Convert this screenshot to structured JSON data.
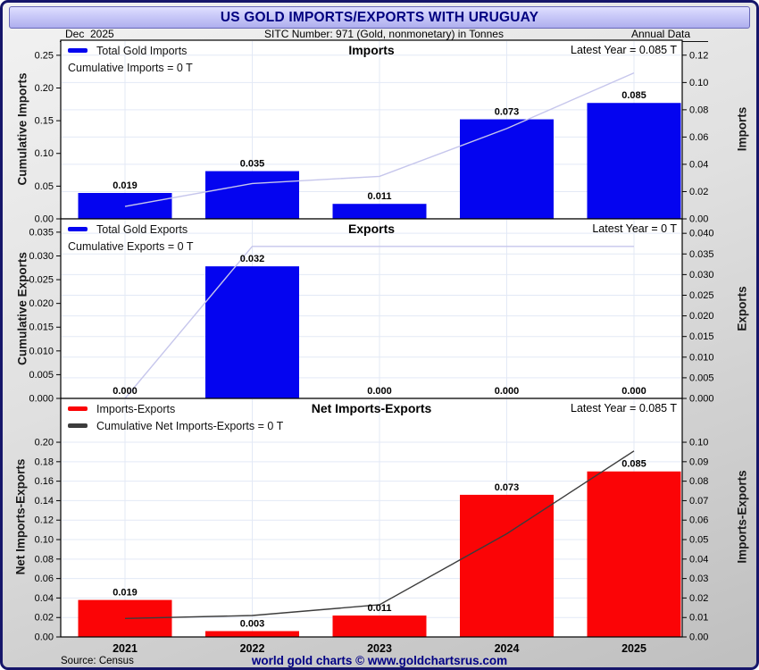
{
  "header": {
    "title": "US GOLD IMPORTS/EXPORTS WITH URUGUAY",
    "date": "Dec  2025",
    "sitc": "SITC Number: 971 (Gold, nonmonetary) in Tonnes",
    "annual": "Annual Data"
  },
  "footer": {
    "source": "Source: Census",
    "brand": "world gold charts © www.goldchartsrus.com"
  },
  "colors": {
    "bar_blue": "#0404f0",
    "bar_red": "#fb0406",
    "line_light": "#c6c6ec",
    "line_dark": "#3c3c3c",
    "grid": "#e3e9f6",
    "plot_border": "#000000",
    "navy": "#000080"
  },
  "chart_data": [
    {
      "type": "bar",
      "title": "Imports",
      "categories": [
        "2021",
        "2022",
        "2023",
        "2024",
        "2025"
      ],
      "bars": {
        "name": "Total Gold Imports",
        "axis": "right",
        "values": [
          0.019,
          0.035,
          0.011,
          0.073,
          0.085
        ],
        "labels": [
          "0.019",
          "0.035",
          "0.011",
          "0.073",
          "0.085"
        ],
        "color_key": "bar_blue"
      },
      "line": {
        "name": "Cumulative Imports",
        "axis": "left",
        "values": [
          0.019,
          0.054,
          0.065,
          0.138,
          0.223
        ],
        "color_key": "line_light"
      },
      "legend": [
        {
          "swatch": "bar_blue",
          "label": "Total Gold Imports"
        },
        {
          "swatch": null,
          "label": "Cumulative Imports = 0 T"
        }
      ],
      "latest": "Latest Year = 0.085 T",
      "ylabel_left": "Cumulative Imports",
      "ylabel_right": "Imports",
      "yticks_left": {
        "min": 0,
        "max": 0.25,
        "step": 0.05,
        "decimals": 2
      },
      "yticks_right": {
        "min": 0,
        "max": 0.12,
        "step": 0.02,
        "decimals": 2
      },
      "ylim_left": [
        0,
        0.273
      ],
      "ylim_right": [
        0,
        0.131
      ],
      "show_xticklabels": false
    },
    {
      "type": "bar",
      "title": "Exports",
      "categories": [
        "2021",
        "2022",
        "2023",
        "2024",
        "2025"
      ],
      "bars": {
        "name": "Total Gold Exports",
        "axis": "right",
        "values": [
          0.0,
          0.032,
          0.0,
          0.0,
          0.0
        ],
        "labels": [
          "0.000",
          "0.032",
          "0.000",
          "0.000",
          "0.000"
        ],
        "color_key": "bar_blue"
      },
      "line": {
        "name": "Cumulative Exports",
        "axis": "left",
        "values": [
          0.0,
          0.032,
          0.032,
          0.032,
          0.032
        ],
        "color_key": "line_light"
      },
      "legend": [
        {
          "swatch": "bar_blue",
          "label": "Total Gold Exports"
        },
        {
          "swatch": null,
          "label": "Cumulative Exports = 0 T"
        }
      ],
      "latest": "Latest Year = 0 T",
      "ylabel_left": "Cumulative Exports",
      "ylabel_right": "Exports",
      "yticks_left": {
        "min": 0,
        "max": 0.035,
        "step": 0.005,
        "decimals": 3
      },
      "yticks_right": {
        "min": 0,
        "max": 0.04,
        "step": 0.005,
        "decimals": 3
      },
      "ylim_left": [
        0,
        0.0378
      ],
      "ylim_right": [
        0,
        0.0435
      ],
      "show_xticklabels": false
    },
    {
      "type": "bar",
      "title": "Net Imports-Exports",
      "categories": [
        "2021",
        "2022",
        "2023",
        "2024",
        "2025"
      ],
      "bars": {
        "name": "Imports-Exports",
        "axis": "right",
        "values": [
          0.019,
          0.003,
          0.011,
          0.073,
          0.085
        ],
        "labels": [
          "0.019",
          "0.003",
          "0.011",
          "0.073",
          "0.085"
        ],
        "color_key": "bar_red"
      },
      "line": {
        "name": "Cumulative Net Imports-Exports",
        "axis": "left",
        "values": [
          0.019,
          0.022,
          0.033,
          0.106,
          0.191
        ],
        "color_key": "line_dark"
      },
      "legend": [
        {
          "swatch": "bar_red",
          "label": "Imports-Exports"
        },
        {
          "swatch": "line_dark",
          "label": "Cumulative Net Imports-Exports = 0 T"
        }
      ],
      "latest": "Latest Year = 0.085 T",
      "ylabel_left": "Net Imports-Exports",
      "ylabel_right": "Imports-Exports",
      "yticks_left": {
        "min": 0,
        "max": 0.2,
        "step": 0.02,
        "decimals": 2
      },
      "yticks_right": {
        "min": 0,
        "max": 0.1,
        "step": 0.01,
        "decimals": 2
      },
      "ylim_left": [
        0,
        0.245
      ],
      "ylim_right": [
        0,
        0.1225
      ],
      "show_xticklabels": true
    }
  ]
}
